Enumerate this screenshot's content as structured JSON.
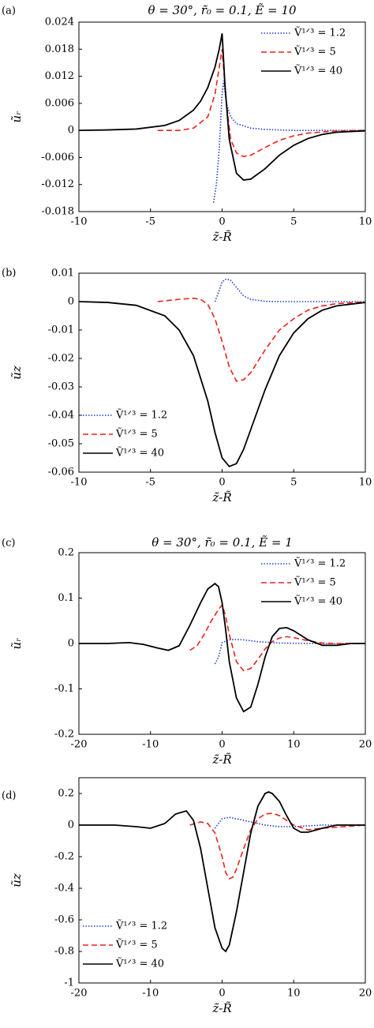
{
  "chart_data": [
    {
      "type": "line",
      "panel_label": "(a)",
      "title": "θ = 30°, r̃₀ = 0.1, Ẽ = 10",
      "xlabel": "z̃-R̃",
      "ylabel": "ũᵣ",
      "xlim": [
        -10,
        10
      ],
      "ylim": [
        -0.018,
        0.024
      ],
      "xticks": [
        -10,
        -5,
        0,
        5,
        10
      ],
      "yticks": [
        -0.018,
        -0.012,
        -0.006,
        0,
        0.006,
        0.012,
        0.018,
        0.024
      ],
      "legend": "upper right",
      "series": [
        {
          "name": "Ṽ¹ᐟ³ = 1.2",
          "color": "#1f3fd0",
          "linestyle": "dotted",
          "x": [
            -0.6,
            -0.4,
            -0.2,
            0,
            0.1,
            0.3,
            0.6,
            1,
            2,
            3,
            5,
            10
          ],
          "values": [
            -0.016,
            -0.012,
            -0.004,
            0.008,
            0.011,
            0.006,
            0.003,
            0.0015,
            0.0005,
            0.0002,
            0,
            0
          ]
        },
        {
          "name": "Ṽ¹ᐟ³ = 5",
          "color": "#e8221b",
          "linestyle": "dashed",
          "x": [
            -4.5,
            -3,
            -2,
            -1,
            -0.5,
            -0.2,
            0,
            0.3,
            0.6,
            1,
            1.5,
            2,
            3,
            4,
            5,
            6,
            8,
            10
          ],
          "values": [
            0,
            0,
            0.0005,
            0.003,
            0.008,
            0.014,
            0.018,
            0.006,
            -0.002,
            -0.005,
            -0.0058,
            -0.0055,
            -0.0038,
            -0.0022,
            -0.0012,
            -0.0006,
            -0.0001,
            0
          ]
        },
        {
          "name": "Ṽ¹ᐟ³ = 40",
          "color": "#000000",
          "linestyle": "solid",
          "x": [
            -10,
            -8,
            -6,
            -4,
            -3,
            -2,
            -1.5,
            -1,
            -0.5,
            -0.2,
            0,
            0.2,
            0.5,
            1,
            1.5,
            2,
            3,
            4,
            5,
            6,
            7,
            8,
            10
          ],
          "values": [
            0,
            0.0001,
            0.0003,
            0.0011,
            0.0022,
            0.0045,
            0.0065,
            0.0095,
            0.014,
            0.018,
            0.0215,
            0.01,
            -0.002,
            -0.0095,
            -0.011,
            -0.0108,
            -0.0085,
            -0.0055,
            -0.0033,
            -0.0018,
            -0.0009,
            -0.0004,
            -0.0001
          ]
        }
      ]
    },
    {
      "type": "line",
      "panel_label": "(b)",
      "xlabel": "z̃-R̃",
      "ylabel": "ũz",
      "xlim": [
        -10,
        10
      ],
      "ylim": [
        -0.06,
        0.01
      ],
      "xticks": [
        -10,
        -5,
        0,
        5,
        10
      ],
      "yticks": [
        -0.06,
        -0.05,
        -0.04,
        -0.03,
        -0.02,
        -0.01,
        0,
        0.01
      ],
      "legend": "lower left",
      "series": [
        {
          "name": "Ṽ¹ᐟ³ = 1.2",
          "color": "#1f3fd0",
          "linestyle": "dotted",
          "x": [
            -0.5,
            -0.2,
            0,
            0.3,
            0.6,
            1,
            1.5,
            2,
            3,
            4,
            6,
            10
          ],
          "values": [
            0,
            0.004,
            0.007,
            0.008,
            0.0075,
            0.005,
            0.002,
            0.0008,
            0.0001,
            0,
            0,
            0
          ]
        },
        {
          "name": "Ṽ¹ᐟ³ = 5",
          "color": "#e8221b",
          "linestyle": "dashed",
          "x": [
            -4.5,
            -3,
            -2,
            -1.5,
            -1,
            -0.5,
            0,
            0.5,
            1,
            1.5,
            2,
            3,
            4,
            5,
            6,
            7,
            8,
            10
          ],
          "values": [
            0,
            0.0008,
            0.0012,
            0.0008,
            -0.001,
            -0.006,
            -0.014,
            -0.023,
            -0.028,
            -0.0275,
            -0.025,
            -0.017,
            -0.01,
            -0.006,
            -0.003,
            -0.0015,
            -0.0007,
            -0.0001
          ]
        },
        {
          "name": "Ṽ¹ᐟ³ = 40",
          "color": "#000000",
          "linestyle": "solid",
          "x": [
            -10,
            -8,
            -6,
            -4,
            -3,
            -2,
            -1,
            -0.5,
            0,
            0.5,
            1,
            1.5,
            2,
            3,
            4,
            5,
            6,
            7,
            8,
            10
          ],
          "values": [
            0,
            -0.0003,
            -0.0013,
            -0.005,
            -0.01,
            -0.019,
            -0.035,
            -0.046,
            -0.055,
            -0.058,
            -0.057,
            -0.052,
            -0.045,
            -0.031,
            -0.019,
            -0.011,
            -0.006,
            -0.003,
            -0.0015,
            -0.0003
          ]
        }
      ]
    },
    {
      "type": "line",
      "panel_label": "(c)",
      "title": "θ = 30°, r̃₀ = 0.1, Ẽ = 1",
      "xlabel": "z̃-R̃",
      "ylabel": "ũᵣ",
      "xlim": [
        -20,
        20
      ],
      "ylim": [
        -0.2,
        0.2
      ],
      "xticks": [
        -20,
        -10,
        0,
        10,
        20
      ],
      "yticks": [
        -0.2,
        -0.1,
        0,
        0.1,
        0.2
      ],
      "legend": "upper right",
      "series": [
        {
          "name": "Ṽ¹ᐟ³ = 1.2",
          "color": "#1f3fd0",
          "linestyle": "dotted",
          "x": [
            -1,
            -0.5,
            0,
            1,
            2,
            3,
            5,
            8,
            12,
            20
          ],
          "values": [
            -0.045,
            -0.03,
            0.002,
            0.008,
            0.009,
            0.008,
            0.004,
            0.001,
            0,
            0
          ]
        },
        {
          "name": "Ṽ¹ᐟ³ = 5",
          "color": "#e8221b",
          "linestyle": "dashed",
          "x": [
            -4.5,
            -3.5,
            -2.5,
            -1.5,
            -0.5,
            0,
            0.5,
            1,
            2,
            3,
            4,
            5,
            6,
            7,
            8,
            9,
            10,
            12,
            14,
            16,
            20
          ],
          "values": [
            -0.015,
            -0.005,
            0.02,
            0.05,
            0.075,
            0.085,
            0.06,
            0.02,
            -0.04,
            -0.06,
            -0.055,
            -0.035,
            -0.012,
            0.004,
            0.012,
            0.015,
            0.013,
            0.006,
            0.001,
            0,
            0
          ]
        },
        {
          "name": "Ṽ¹ᐟ³ = 40",
          "color": "#000000",
          "linestyle": "solid",
          "x": [
            -20,
            -16,
            -13,
            -11,
            -9,
            -7.5,
            -6,
            -4.5,
            -3,
            -2,
            -1,
            -0.5,
            0,
            0.5,
            1,
            2,
            3,
            4,
            5,
            6,
            7,
            8,
            9,
            10,
            11,
            12,
            14,
            16,
            18,
            20
          ],
          "values": [
            0,
            0,
            0.002,
            -0.002,
            -0.01,
            -0.015,
            -0.005,
            0.04,
            0.09,
            0.12,
            0.132,
            0.125,
            0.09,
            0.03,
            -0.04,
            -0.12,
            -0.15,
            -0.14,
            -0.09,
            -0.03,
            0.015,
            0.033,
            0.035,
            0.028,
            0.018,
            0.008,
            -0.004,
            -0.004,
            0,
            0
          ]
        }
      ]
    },
    {
      "type": "line",
      "panel_label": "(d)",
      "xlabel": "z̃-R̃",
      "ylabel": "ũz",
      "xlim": [
        -20,
        20
      ],
      "ylim": [
        -1,
        0.3
      ],
      "xticks": [
        -20,
        -10,
        0,
        10,
        20
      ],
      "yticks": [
        -1,
        -0.8,
        -0.6,
        -0.4,
        -0.2,
        0,
        0.2
      ],
      "legend": "lower left",
      "series": [
        {
          "name": "Ṽ¹ᐟ³ = 1.2",
          "color": "#1f3fd0",
          "linestyle": "dotted",
          "x": [
            -1,
            0,
            1,
            2,
            4,
            6,
            8,
            10,
            14,
            20
          ],
          "values": [
            -0.02,
            0.04,
            0.05,
            0.04,
            0.02,
            0,
            -0.01,
            -0.01,
            0,
            0
          ]
        },
        {
          "name": "Ṽ¹ᐟ³ = 5",
          "color": "#e8221b",
          "linestyle": "dashed",
          "x": [
            -4.5,
            -3,
            -2,
            -1,
            0,
            0.5,
            1,
            1.5,
            2,
            3,
            4,
            5,
            6,
            7,
            8,
            9,
            10,
            12,
            14,
            20
          ],
          "values": [
            0,
            0.02,
            0.01,
            -0.05,
            -0.2,
            -0.3,
            -0.34,
            -0.33,
            -0.28,
            -0.15,
            -0.03,
            0.04,
            0.07,
            0.075,
            0.06,
            0.03,
            0,
            -0.03,
            -0.02,
            0
          ]
        },
        {
          "name": "Ṽ¹ᐟ³ = 40",
          "color": "#000000",
          "linestyle": "solid",
          "x": [
            -20,
            -15,
            -12,
            -10,
            -8,
            -6.5,
            -5,
            -4,
            -3,
            -2,
            -1,
            0,
            0.5,
            1,
            2,
            3,
            4,
            5,
            6,
            6.5,
            7,
            8,
            9,
            10,
            11,
            12,
            14,
            16,
            18,
            20
          ],
          "values": [
            0,
            0,
            -0.01,
            -0.02,
            0.01,
            0.07,
            0.09,
            0.03,
            -0.15,
            -0.4,
            -0.65,
            -0.78,
            -0.8,
            -0.76,
            -0.55,
            -0.3,
            -0.05,
            0.12,
            0.2,
            0.21,
            0.2,
            0.15,
            0.06,
            -0.02,
            -0.045,
            -0.045,
            -0.02,
            0,
            0,
            0
          ]
        }
      ]
    }
  ]
}
